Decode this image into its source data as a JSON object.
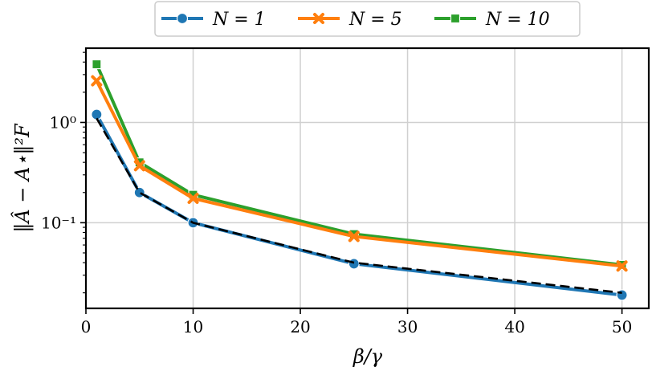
{
  "chart_data": {
    "type": "line",
    "title": "",
    "xlabel": "β/γ",
    "ylabel": "‖Â − A⋆‖²F",
    "x": [
      1,
      5,
      10,
      25,
      50
    ],
    "xlim": [
      0,
      52.5
    ],
    "ylim": [
      0.014,
      5.5
    ],
    "yscale": "log",
    "grid": true,
    "x_ticks": [
      0,
      10,
      20,
      30,
      40,
      50
    ],
    "x_tick_labels": [
      "0",
      "10",
      "20",
      "30",
      "40",
      "50"
    ],
    "y_ticks": [
      1,
      0.1
    ],
    "y_tick_labels": [
      "10⁰",
      "10⁻¹"
    ],
    "legend_position": "top-center",
    "series": [
      {
        "name": "N = 1",
        "values": [
          1.2,
          0.2,
          0.1,
          0.039,
          0.019
        ],
        "color": "#1f77b4",
        "marker": "circle"
      },
      {
        "name": "N = 5",
        "values": [
          2.6,
          0.37,
          0.175,
          0.073,
          0.037
        ],
        "color": "#ff7f0e",
        "marker": "x"
      },
      {
        "name": "N = 10",
        "values": [
          3.8,
          0.4,
          0.19,
          0.077,
          0.038
        ],
        "color": "#2ca02c",
        "marker": "square"
      }
    ],
    "reference": {
      "values": [
        1.1,
        0.2,
        0.1,
        0.04,
        0.02
      ],
      "color": "#000000",
      "style": "dashed"
    }
  }
}
